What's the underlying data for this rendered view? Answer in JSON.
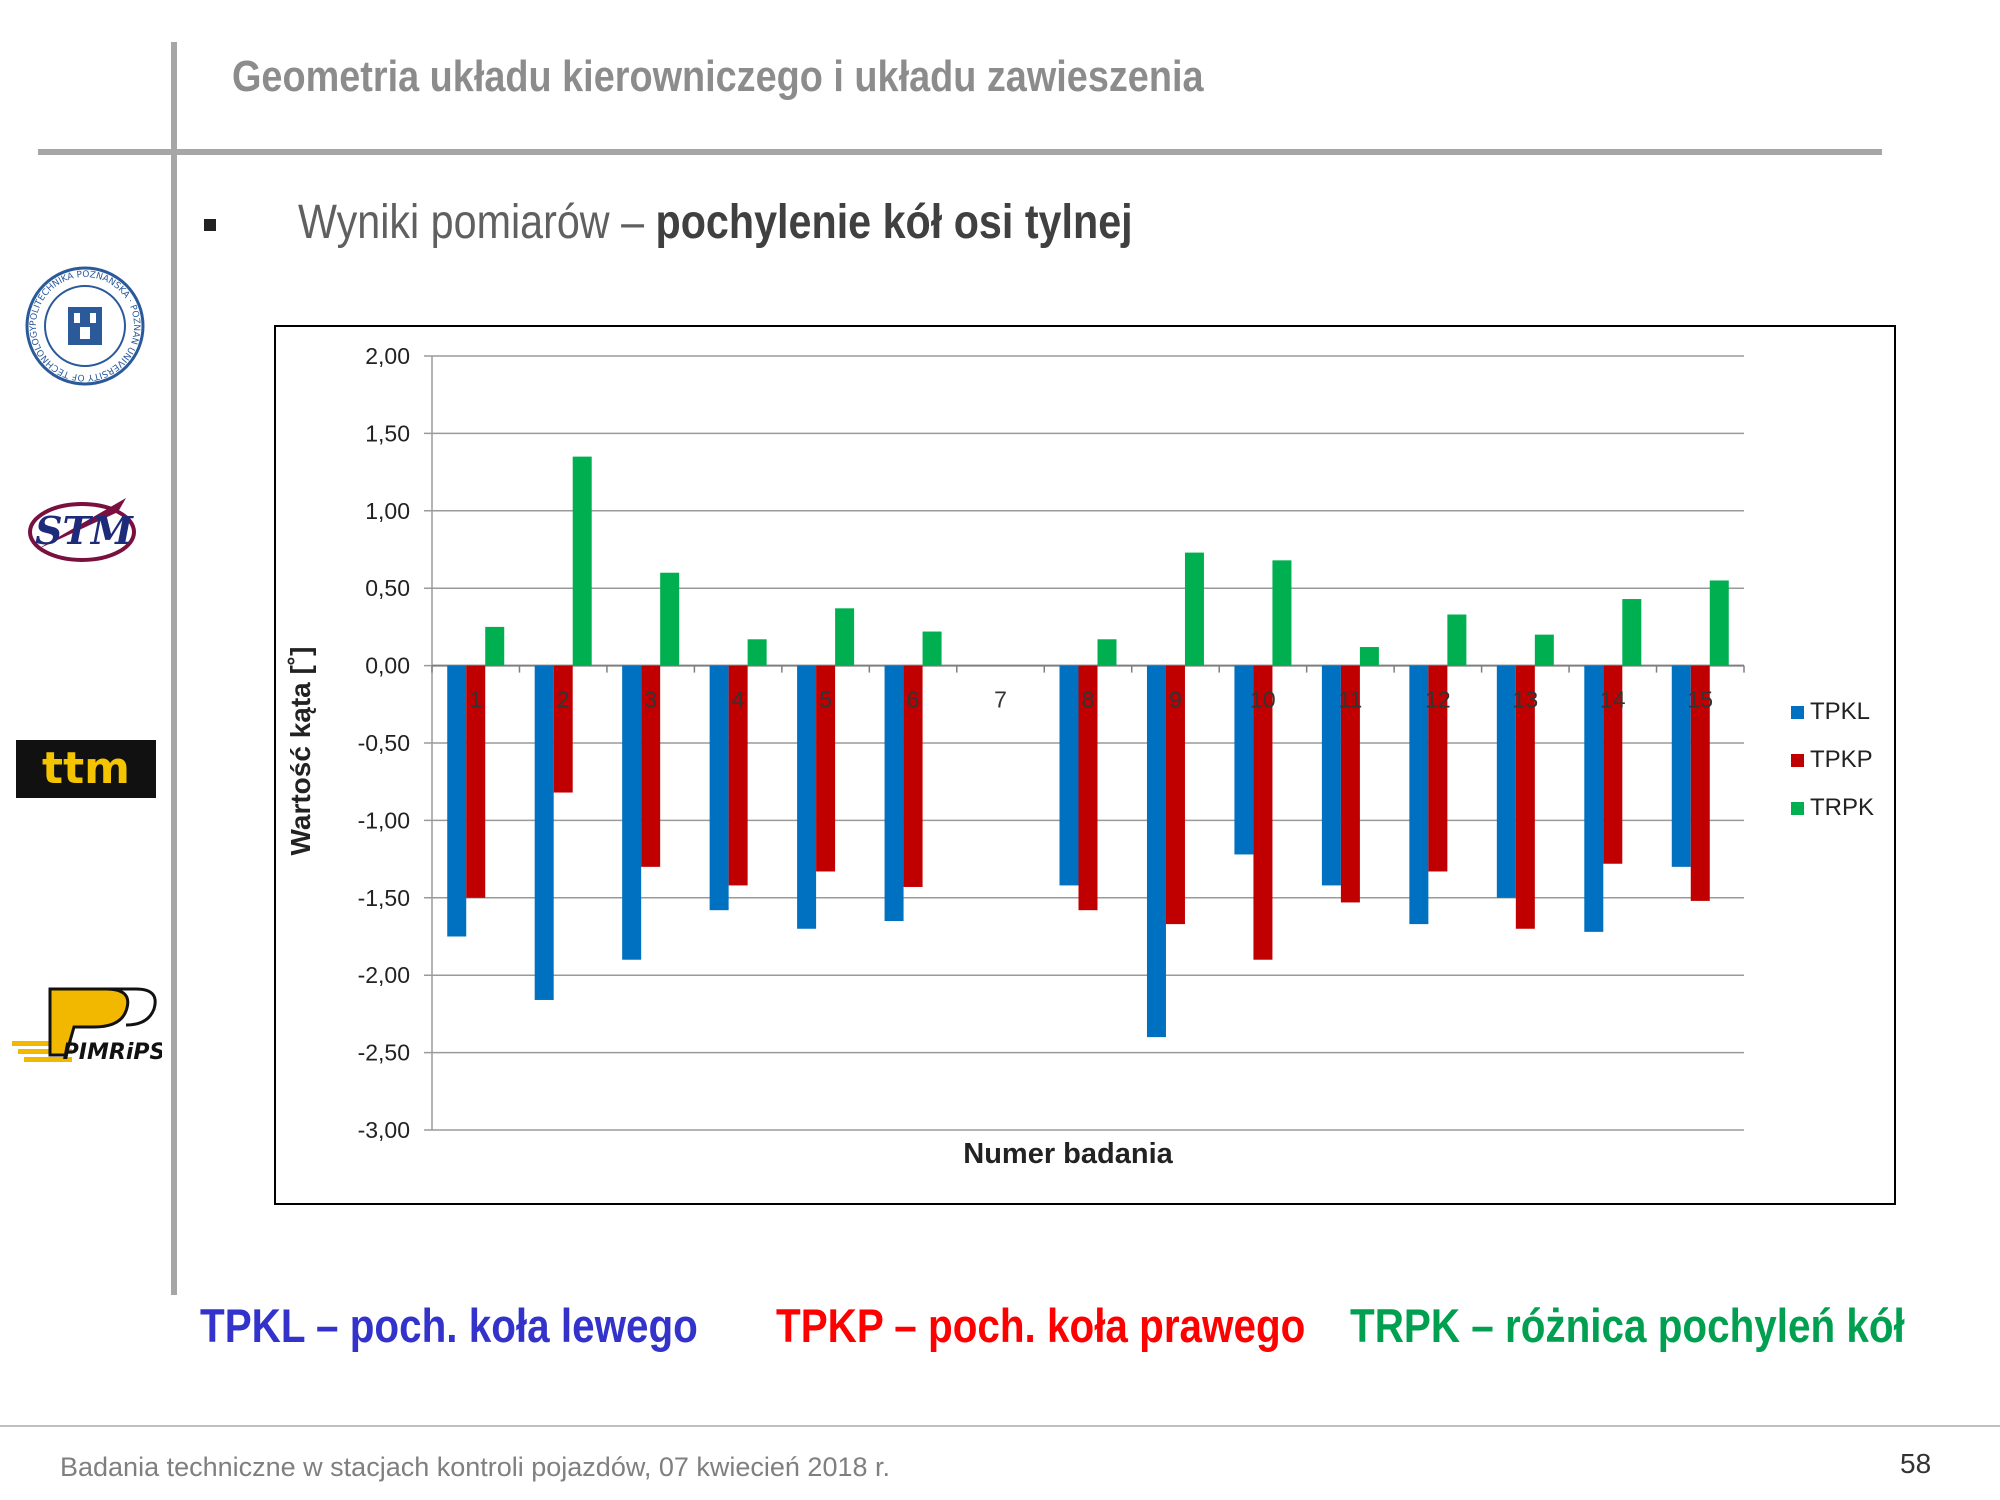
{
  "slide": {
    "title": "Geometria układu kierowniczego i układu zawieszenia",
    "subtitle_plain": "Wyniki pomiarów – ",
    "subtitle_bold": "pochylenie kół osi tylnej",
    "footer": "Badania techniczne w stacjach kontroli pojazdów, 07 kwiecień 2018 r.",
    "page_number": "58"
  },
  "logos": {
    "put": {
      "text": "POLITECHNIKA POZNAŃSKA · POZNAN UNIVERSITY OF TECHNOLOGY"
    },
    "stm": {
      "text": "STM"
    },
    "ttm": {
      "text": "ttm"
    },
    "pimrips": {
      "text": "PIMRiPS"
    }
  },
  "legend_bottom": {
    "tpkl": "TPKL – poch. koła lewego",
    "tpkp": "TPKP – poch. koła prawego",
    "trpk": "TRPK – różnica pochyleń kół"
  },
  "colors": {
    "TPKL": "#0070c0",
    "TPKP": "#c00000",
    "TRPK": "#00b050",
    "legend_tpkl": "#3333cc",
    "legend_tpkp": "#ff0000",
    "legend_trpk": "#00a050"
  },
  "chart_data": {
    "type": "bar",
    "xlabel": "Numer badania",
    "ylabel": "Wartość kąta  [˚]",
    "ylim": [
      -3.0,
      2.0
    ],
    "yticks": [
      "2,00",
      "1,50",
      "1,00",
      "0,50",
      "0,00",
      "-0,50",
      "-1,00",
      "-1,50",
      "-2,00",
      "-2,50",
      "-3,00"
    ],
    "grid": true,
    "legend_position": "right",
    "categories": [
      "1",
      "2",
      "3",
      "4",
      "5",
      "6",
      "7",
      "8",
      "9",
      "10",
      "11",
      "12",
      "13",
      "14",
      "15"
    ],
    "series": [
      {
        "name": "TPKL",
        "values": [
          -1.75,
          -2.16,
          -1.9,
          -1.58,
          -1.7,
          -1.65,
          null,
          -1.42,
          -2.4,
          -1.22,
          -1.42,
          -1.67,
          -1.5,
          -1.72,
          -1.3
        ]
      },
      {
        "name": "TPKP",
        "values": [
          -1.5,
          -0.82,
          -1.3,
          -1.42,
          -1.33,
          -1.43,
          null,
          -1.58,
          -1.67,
          -1.9,
          -1.53,
          -1.33,
          -1.7,
          -1.28,
          -1.52
        ]
      },
      {
        "name": "TRPK",
        "values": [
          0.25,
          1.35,
          0.6,
          0.17,
          0.37,
          0.22,
          null,
          0.17,
          0.73,
          0.68,
          0.12,
          0.33,
          0.2,
          0.43,
          0.55
        ]
      }
    ]
  }
}
